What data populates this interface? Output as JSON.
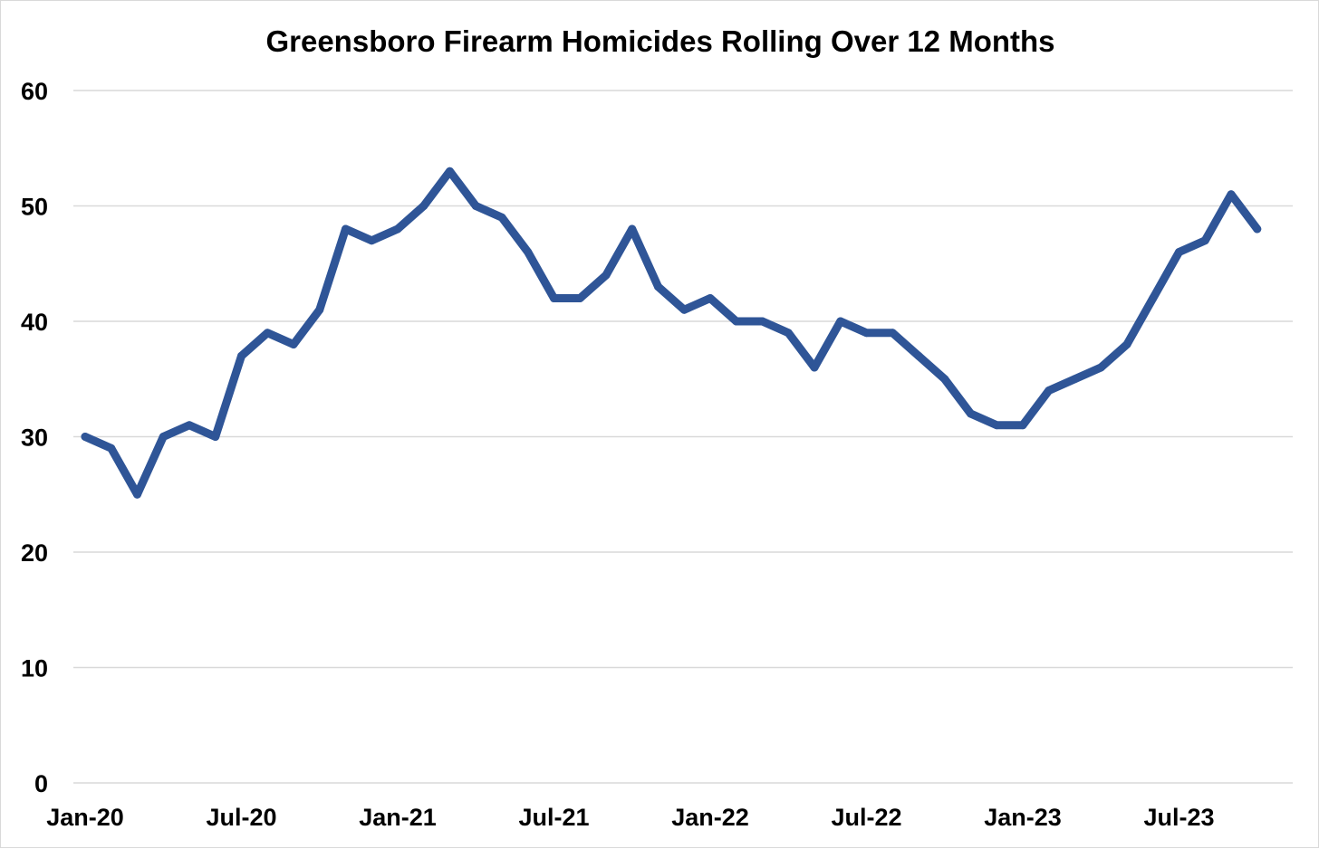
{
  "chart_data": {
    "type": "line",
    "title": "Greensboro Firearm Homicides Rolling Over 12 Months",
    "xlabel": "",
    "ylabel": "",
    "ylim": [
      0,
      60
    ],
    "yticks": [
      "0",
      "10",
      "20",
      "30",
      "40",
      "50",
      "60"
    ],
    "grid": true,
    "legend": "none",
    "x_tick_labels": [
      "Jan-20",
      "Jul-20",
      "Jan-21",
      "Jul-21",
      "Jan-22",
      "Jul-22",
      "Jan-23",
      "Jul-23"
    ],
    "x": [
      "Jan-20",
      "Feb-20",
      "Mar-20",
      "Apr-20",
      "May-20",
      "Jun-20",
      "Jul-20",
      "Aug-20",
      "Sep-20",
      "Oct-20",
      "Nov-20",
      "Dec-20",
      "Jan-21",
      "Feb-21",
      "Mar-21",
      "Apr-21",
      "May-21",
      "Jun-21",
      "Jul-21",
      "Aug-21",
      "Sep-21",
      "Oct-21",
      "Nov-21",
      "Dec-21",
      "Jan-22",
      "Feb-22",
      "Mar-22",
      "Apr-22",
      "May-22",
      "Jun-22",
      "Jul-22",
      "Aug-22",
      "Sep-22",
      "Oct-22",
      "Nov-22",
      "Dec-22",
      "Jan-23",
      "Feb-23",
      "Mar-23",
      "Apr-23",
      "May-23",
      "Jun-23",
      "Jul-23",
      "Aug-23",
      "Sep-23",
      "Oct-23"
    ],
    "series": [
      {
        "color": "#2f5597",
        "values": [
          30,
          29,
          25,
          30,
          31,
          30,
          37,
          39,
          38,
          41,
          48,
          47,
          48,
          50,
          53,
          50,
          49,
          46,
          42,
          42,
          44,
          48,
          43,
          41,
          42,
          40,
          40,
          39,
          36,
          40,
          39,
          39,
          37,
          35,
          32,
          31,
          31,
          34,
          35,
          36,
          38,
          42,
          46,
          47,
          51,
          48
        ]
      }
    ]
  }
}
